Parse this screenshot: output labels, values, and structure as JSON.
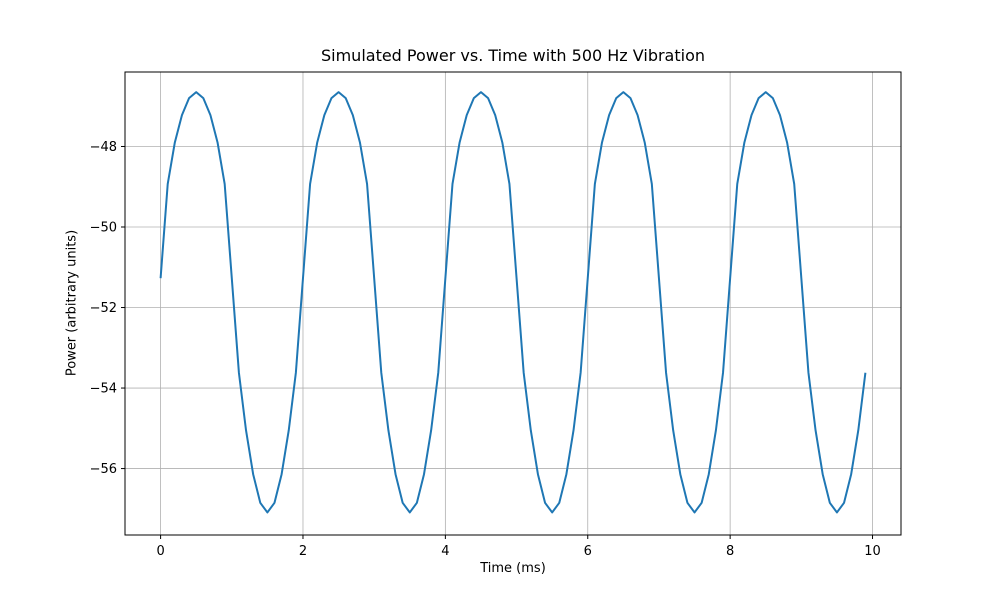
{
  "chart_data": {
    "type": "line",
    "title": "Simulated Power vs. Time with 500 Hz Vibration",
    "xlabel": "Time (ms)",
    "ylabel": "Power (arbitrary units)",
    "xlim": [
      -0.5,
      10.4
    ],
    "ylim": [
      -57.65,
      -46.15
    ],
    "xticks": [
      0,
      2,
      4,
      6,
      8,
      10
    ],
    "xtick_labels": [
      "0",
      "2",
      "4",
      "6",
      "8",
      "10"
    ],
    "yticks": [
      -56,
      -54,
      -52,
      -50,
      -48
    ],
    "ytick_labels": [
      "−56",
      "−54",
      "−52",
      "−50",
      "−48"
    ],
    "grid": true,
    "series": [
      {
        "color": "#1f77b4",
        "x": [
          0.0,
          0.1,
          0.2,
          0.3,
          0.4,
          0.5,
          0.6,
          0.7,
          0.8,
          0.9,
          1.0,
          1.1,
          1.2,
          1.3,
          1.4,
          1.5,
          1.6,
          1.7,
          1.8,
          1.9,
          2.0,
          2.1,
          2.2,
          2.3,
          2.4,
          2.5,
          2.6,
          2.7,
          2.8,
          2.9,
          3.0,
          3.1,
          3.2,
          3.3,
          3.4,
          3.5,
          3.6,
          3.7,
          3.8,
          3.9,
          4.0,
          4.1,
          4.2,
          4.3,
          4.4,
          4.5,
          4.6,
          4.7,
          4.8,
          4.9,
          5.0,
          5.1,
          5.2,
          5.3,
          5.4,
          5.5,
          5.6,
          5.7,
          5.8,
          5.9,
          6.0,
          6.1,
          6.2,
          6.3,
          6.4,
          6.5,
          6.6,
          6.7,
          6.8,
          6.9,
          7.0,
          7.1,
          7.2,
          7.3,
          7.4,
          7.5,
          7.6,
          7.7,
          7.8,
          7.9,
          8.0,
          8.1,
          8.2,
          8.3,
          8.4,
          8.5,
          8.6,
          8.7,
          8.8,
          8.9,
          9.0,
          9.1,
          9.2,
          9.3,
          9.4,
          9.5,
          9.6,
          9.7,
          9.8,
          9.9
        ],
        "y": [
          -51.27,
          -48.93,
          -47.9,
          -47.22,
          -46.8,
          -46.65,
          -46.8,
          -47.22,
          -47.9,
          -48.93,
          -51.27,
          -53.62,
          -55.05,
          -56.14,
          -56.85,
          -57.09,
          -56.85,
          -56.14,
          -55.05,
          -53.62,
          -51.27,
          -48.93,
          -47.9,
          -47.22,
          -46.8,
          -46.65,
          -46.8,
          -47.22,
          -47.9,
          -48.93,
          -51.27,
          -53.62,
          -55.05,
          -56.14,
          -56.85,
          -57.09,
          -56.85,
          -56.14,
          -55.05,
          -53.62,
          -51.27,
          -48.93,
          -47.9,
          -47.22,
          -46.8,
          -46.65,
          -46.8,
          -47.22,
          -47.9,
          -48.93,
          -51.27,
          -53.62,
          -55.05,
          -56.14,
          -56.85,
          -57.09,
          -56.85,
          -56.14,
          -55.05,
          -53.62,
          -51.27,
          -48.93,
          -47.9,
          -47.22,
          -46.8,
          -46.65,
          -46.8,
          -47.22,
          -47.9,
          -48.93,
          -51.27,
          -53.62,
          -55.05,
          -56.14,
          -56.85,
          -57.09,
          -56.85,
          -56.14,
          -55.05,
          -53.62,
          -51.27,
          -48.93,
          -47.9,
          -47.22,
          -46.8,
          -46.65,
          -46.8,
          -47.22,
          -47.9,
          -48.93,
          -51.27,
          -53.62,
          -55.05,
          -56.14,
          -56.85,
          -57.09,
          -56.85,
          -56.14,
          -55.05,
          -53.62
        ]
      }
    ]
  }
}
